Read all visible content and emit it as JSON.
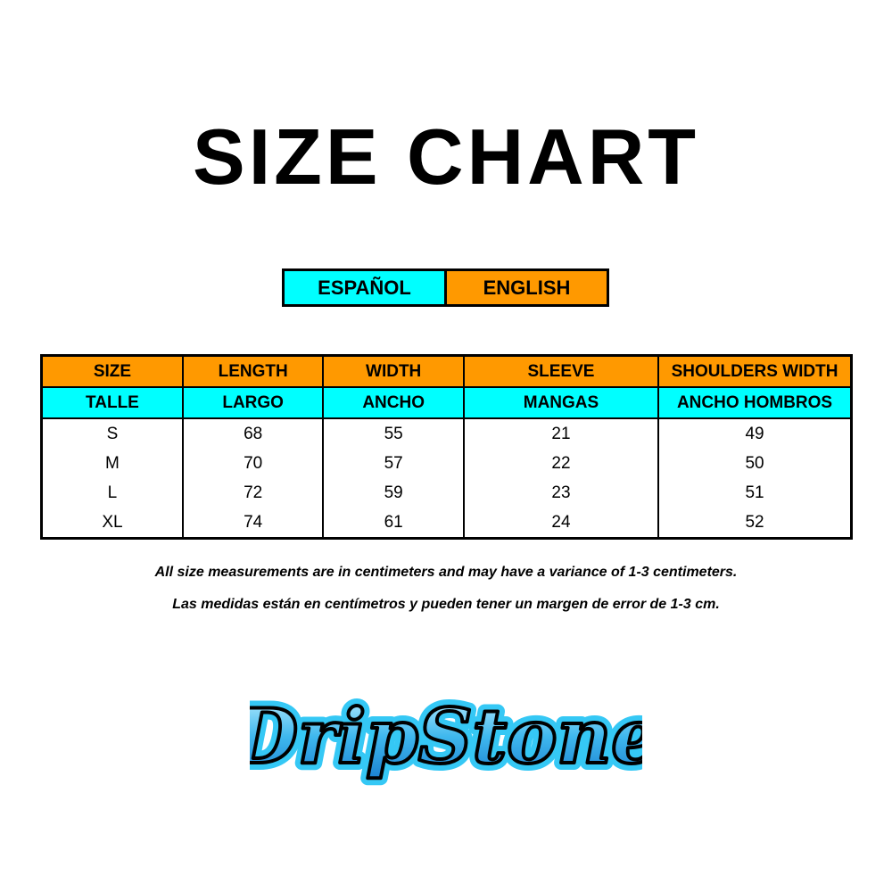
{
  "title": "SIZE CHART",
  "languages": {
    "spanish": "ESPAÑOL",
    "english": "ENGLISH"
  },
  "colors": {
    "english_header": "#ff9900",
    "spanish_header": "#00ffff"
  },
  "table": {
    "headers_en": [
      "SIZE",
      "LENGTH",
      "WIDTH",
      "SLEEVE",
      "SHOULDERS WIDTH"
    ],
    "headers_es": [
      "TALLE",
      "LARGO",
      "ANCHO",
      "MANGAS",
      "ANCHO HOMBROS"
    ],
    "rows": [
      [
        "S",
        "68",
        "55",
        "21",
        "49"
      ],
      [
        "M",
        "70",
        "57",
        "22",
        "50"
      ],
      [
        "L",
        "72",
        "59",
        "23",
        "51"
      ],
      [
        "XL",
        "74",
        "61",
        "24",
        "52"
      ]
    ]
  },
  "notes": {
    "english": "All size measurements are in centimeters and may have a variance of 1-3 centimeters.",
    "spanish": "Las medidas están en centímetros y pueden tener un margen de error de 1-3 cm."
  },
  "logo": {
    "text": "DripStone"
  }
}
